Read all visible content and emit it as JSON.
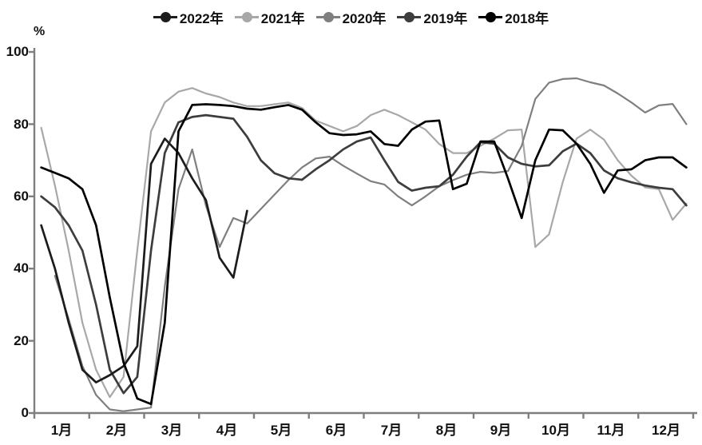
{
  "chart_data": {
    "type": "line",
    "title": "",
    "unit": "%",
    "legend_position": "top",
    "grid": false,
    "categories": [
      "1月",
      "2月",
      "3月",
      "4月",
      "5月",
      "6月",
      "7月",
      "8月",
      "9月",
      "10月",
      "11月",
      "12月"
    ],
    "points_per_month": 4,
    "ylim": [
      0,
      100
    ],
    "yticks": [
      "0",
      "20",
      "40",
      "60",
      "80",
      "100"
    ],
    "axis_color": "#7f7f7f",
    "draw_order": [
      1,
      2,
      3,
      0,
      4
    ],
    "series": [
      {
        "label": "2022年",
        "color": "#1c1c1c",
        "width": 2.7,
        "values": [
          52,
          40,
          25,
          12,
          8.5,
          10.5,
          13,
          18.5,
          69,
          76,
          72,
          65,
          59,
          43,
          37.5,
          56,
          null,
          null,
          null,
          null,
          null,
          null,
          null,
          null,
          null,
          null,
          null,
          null,
          null,
          null,
          null,
          null,
          null,
          null,
          null,
          null,
          null,
          null,
          null,
          null,
          null,
          null,
          null,
          null,
          null,
          null,
          null,
          null
        ]
      },
      {
        "label": "2021年",
        "color": "#a8a8a8",
        "width": 2.2,
        "values": [
          79,
          63,
          45,
          25,
          12,
          4.4,
          10,
          45,
          78,
          86,
          89,
          90,
          88.5,
          87.5,
          86,
          85,
          85,
          85.5,
          86,
          84.5,
          81,
          79.5,
          78,
          79.5,
          82.5,
          84,
          82.5,
          80.5,
          78.5,
          74.5,
          72,
          72,
          74,
          76,
          78.3,
          78.5,
          46,
          49.5,
          64,
          76,
          78.5,
          75.7,
          70,
          65.7,
          62.5,
          62,
          53.5,
          58
        ]
      },
      {
        "label": "2020年",
        "color": "#7f7f7f",
        "width": 2.2,
        "values": [
          null,
          38,
          26,
          13,
          5,
          1,
          0.5,
          1,
          1.5,
          35,
          62,
          73,
          57.5,
          46,
          54,
          52.5,
          56.5,
          60.5,
          64.5,
          68,
          70.5,
          71,
          68.5,
          66.3,
          64.2,
          63.3,
          60,
          57.5,
          60,
          62.8,
          64.5,
          66,
          66.8,
          66.5,
          67,
          74,
          87,
          91.5,
          92.5,
          92.7,
          91.6,
          90.7,
          88.5,
          86,
          83.2,
          85.2,
          85.6,
          80
        ]
      },
      {
        "label": "2019年",
        "color": "#3d3d3d",
        "width": 2.7,
        "values": [
          60,
          57,
          52,
          45,
          30,
          12,
          5.5,
          10,
          45,
          72,
          80.5,
          82,
          82.5,
          82,
          81.5,
          76.5,
          70,
          66.4,
          65,
          64.6,
          67.5,
          70,
          73,
          75.2,
          76.3,
          70,
          64,
          61.6,
          62.4,
          62.8,
          66,
          71,
          75,
          74.6,
          70.8,
          69,
          68.3,
          68.6,
          72.5,
          74.6,
          72,
          67.2,
          65,
          63.9,
          63,
          62.4,
          62,
          57.5
        ]
      },
      {
        "label": "2018年",
        "color": "#000000",
        "width": 2.7,
        "values": [
          68,
          66.5,
          65,
          62,
          52,
          32,
          14,
          4,
          2.5,
          25,
          78,
          85.3,
          85.5,
          85.3,
          85,
          84.3,
          84,
          84.7,
          85.3,
          84,
          80.5,
          77.5,
          77,
          77.2,
          78,
          74.5,
          74,
          78.5,
          80.7,
          81,
          62,
          63.5,
          75.2,
          75.2,
          65,
          54,
          70,
          78.5,
          78.3,
          74.6,
          69,
          61,
          67.2,
          67.5,
          70,
          70.8,
          70.8,
          68
        ]
      }
    ]
  }
}
